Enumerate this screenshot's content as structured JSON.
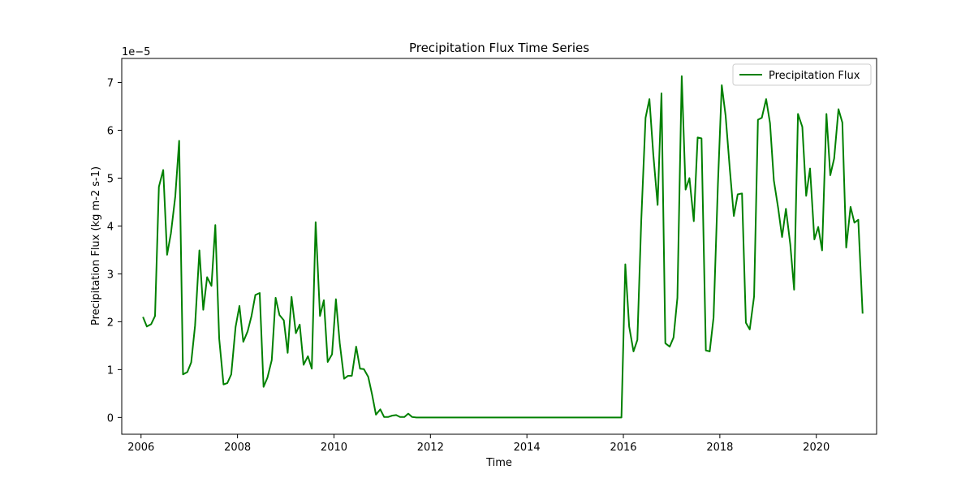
{
  "chart_data": {
    "type": "line",
    "title": "Precipitation Flux Time Series",
    "xlabel": "Time",
    "ylabel": "Precipitation Flux (kg m-2 s-1)",
    "y_offset_label": "1e−5",
    "y_scale": 1e-05,
    "xlim": [
      2005.6,
      2021.25
    ],
    "ylim": [
      -0.35,
      7.5
    ],
    "x_ticks": [
      2006,
      2008,
      2010,
      2012,
      2014,
      2016,
      2018,
      2020
    ],
    "x_tick_labels": [
      "2006",
      "2008",
      "2010",
      "2012",
      "2014",
      "2016",
      "2018",
      "2020"
    ],
    "y_ticks": [
      0,
      1,
      2,
      3,
      4,
      5,
      6,
      7
    ],
    "y_tick_labels": [
      "0",
      "1",
      "2",
      "3",
      "4",
      "5",
      "6",
      "7"
    ],
    "grid": false,
    "legend_position": "top-right",
    "series": [
      {
        "name": "Precipitation Flux",
        "color": "#008000",
        "x": [
          2006.04,
          2006.12,
          2006.21,
          2006.29,
          2006.37,
          2006.46,
          2006.54,
          2006.62,
          2006.71,
          2006.79,
          2006.87,
          2006.96,
          2007.04,
          2007.12,
          2007.21,
          2007.29,
          2007.37,
          2007.46,
          2007.54,
          2007.62,
          2007.71,
          2007.79,
          2007.87,
          2007.96,
          2008.04,
          2008.12,
          2008.21,
          2008.29,
          2008.37,
          2008.46,
          2008.54,
          2008.62,
          2008.71,
          2008.79,
          2008.87,
          2008.96,
          2009.04,
          2009.12,
          2009.21,
          2009.29,
          2009.37,
          2009.46,
          2009.54,
          2009.62,
          2009.71,
          2009.79,
          2009.87,
          2009.96,
          2010.04,
          2010.12,
          2010.21,
          2010.29,
          2010.37,
          2010.46,
          2010.54,
          2010.62,
          2010.71,
          2010.79,
          2010.87,
          2010.96,
          2011.04,
          2011.12,
          2011.21,
          2011.29,
          2011.37,
          2011.46,
          2011.54,
          2011.62,
          2011.71,
          2015.96,
          2016.04,
          2016.12,
          2016.21,
          2016.29,
          2016.37,
          2016.46,
          2016.54,
          2016.62,
          2016.71,
          2016.79,
          2016.87,
          2016.96,
          2017.04,
          2017.12,
          2017.21,
          2017.29,
          2017.37,
          2017.46,
          2017.54,
          2017.62,
          2017.71,
          2017.79,
          2017.87,
          2017.96,
          2018.04,
          2018.12,
          2018.21,
          2018.29,
          2018.37,
          2018.46,
          2018.54,
          2018.62,
          2018.71,
          2018.79,
          2018.87,
          2018.96,
          2019.04,
          2019.12,
          2019.21,
          2019.29,
          2019.37,
          2019.46,
          2019.54,
          2019.62,
          2019.71,
          2019.79,
          2019.87,
          2019.96,
          2020.04,
          2020.12,
          2020.21,
          2020.29,
          2020.37,
          2020.46,
          2020.54,
          2020.62,
          2020.71,
          2020.79,
          2020.87,
          2020.96
        ],
        "values": [
          2.1,
          1.9,
          1.95,
          2.12,
          4.82,
          5.17,
          3.4,
          3.85,
          4.62,
          5.78,
          0.9,
          0.95,
          1.15,
          1.92,
          3.49,
          2.25,
          2.93,
          2.75,
          4.02,
          1.65,
          0.69,
          0.72,
          0.9,
          1.89,
          2.33,
          1.58,
          1.8,
          2.12,
          2.56,
          2.6,
          0.64,
          0.83,
          1.2,
          2.5,
          2.14,
          2.03,
          1.35,
          2.52,
          1.76,
          1.94,
          1.1,
          1.28,
          1.02,
          4.08,
          2.12,
          2.45,
          1.16,
          1.32,
          2.47,
          1.55,
          0.81,
          0.87,
          0.87,
          1.48,
          1.02,
          1.01,
          0.85,
          0.48,
          0.06,
          0.17,
          0.01,
          0.01,
          0.04,
          0.05,
          0.01,
          0.01,
          0.08,
          0.01,
          0.0,
          0.0,
          3.2,
          1.9,
          1.38,
          1.62,
          4.1,
          6.26,
          6.65,
          5.5,
          4.44,
          6.77,
          1.55,
          1.48,
          1.67,
          2.5,
          7.13,
          4.76,
          5.0,
          4.1,
          5.85,
          5.83,
          1.4,
          1.38,
          2.09,
          4.87,
          6.94,
          6.3,
          5.15,
          4.21,
          4.66,
          4.68,
          1.98,
          1.84,
          2.53,
          6.22,
          6.26,
          6.65,
          6.15,
          4.95,
          4.37,
          3.77,
          4.36,
          3.62,
          2.67,
          6.34,
          6.07,
          4.63,
          5.2,
          3.72,
          3.98,
          3.49,
          6.34,
          5.06,
          5.41,
          6.44,
          6.16,
          3.55,
          4.4,
          4.07,
          4.13,
          2.17
        ]
      }
    ]
  }
}
